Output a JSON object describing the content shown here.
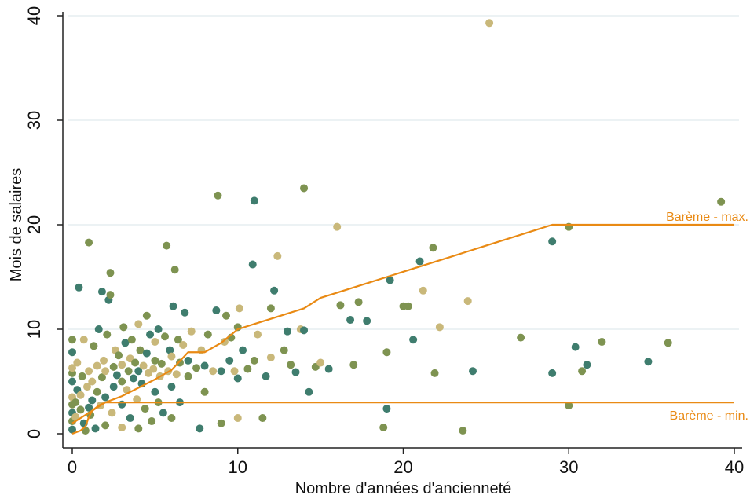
{
  "chart_data": {
    "type": "scatter",
    "title": "",
    "xlabel": "Nombre d'années d'ancienneté",
    "ylabel": "Mois de salaires",
    "xlim": [
      0,
      40
    ],
    "ylim": [
      0,
      40
    ],
    "xticks": [
      "0",
      "10",
      "20",
      "30",
      "40"
    ],
    "yticks": [
      "0",
      "10",
      "20",
      "30",
      "40"
    ],
    "grid": "horizontal",
    "point_colors": [
      "#3f7d6e",
      "#7e9351",
      "#c9b87a"
    ],
    "line_color": "#e98a14",
    "points": [
      [
        0,
        0.4,
        0
      ],
      [
        0,
        1.2,
        1
      ],
      [
        0,
        2,
        0
      ],
      [
        0,
        2.8,
        1
      ],
      [
        0,
        3.5,
        2
      ],
      [
        0,
        5,
        0
      ],
      [
        0,
        5.8,
        1
      ],
      [
        0,
        6.3,
        2
      ],
      [
        0,
        7.8,
        0
      ],
      [
        0,
        9,
        1
      ],
      [
        0.2,
        1.6,
        2
      ],
      [
        0.2,
        3,
        1
      ],
      [
        0.3,
        4.2,
        0
      ],
      [
        0.3,
        6.8,
        2
      ],
      [
        0.4,
        14,
        0
      ],
      [
        0.5,
        2.3,
        1
      ],
      [
        0.5,
        3.7,
        2
      ],
      [
        0.6,
        5.5,
        1
      ],
      [
        0.7,
        1,
        0
      ],
      [
        0.7,
        9,
        2
      ],
      [
        0.8,
        0.3,
        1
      ],
      [
        0.9,
        4.5,
        2
      ],
      [
        1,
        18.3,
        1
      ],
      [
        1,
        2.5,
        0
      ],
      [
        1,
        6,
        2
      ],
      [
        1.1,
        1.8,
        1
      ],
      [
        1.2,
        3.2,
        0
      ],
      [
        1.2,
        5,
        2
      ],
      [
        1.3,
        8.4,
        1
      ],
      [
        1.4,
        0.5,
        0
      ],
      [
        1.5,
        4,
        1
      ],
      [
        1.5,
        6.5,
        2
      ],
      [
        1.6,
        10,
        0
      ],
      [
        1.7,
        2.7,
        2
      ],
      [
        1.8,
        5.4,
        1
      ],
      [
        1.8,
        13.6,
        0
      ],
      [
        1.9,
        7,
        2
      ],
      [
        2,
        0.8,
        1
      ],
      [
        2,
        3.5,
        0
      ],
      [
        2,
        6,
        2
      ],
      [
        2.1,
        9.5,
        1
      ],
      [
        2.2,
        12.8,
        0
      ],
      [
        2.3,
        13.3,
        1
      ],
      [
        2.3,
        15.4,
        1
      ],
      [
        2.4,
        2,
        2
      ],
      [
        2.5,
        4.5,
        0
      ],
      [
        2.5,
        6.4,
        1
      ],
      [
        2.6,
        8,
        2
      ],
      [
        2.7,
        5.6,
        0
      ],
      [
        2.8,
        7.5,
        1
      ],
      [
        3,
        0.6,
        2
      ],
      [
        3,
        2.8,
        0
      ],
      [
        3,
        5,
        1
      ],
      [
        3,
        6.6,
        2
      ],
      [
        3.1,
        10.2,
        1
      ],
      [
        3.2,
        8.7,
        0
      ],
      [
        3.3,
        4.2,
        2
      ],
      [
        3.4,
        6,
        1
      ],
      [
        3.5,
        1.5,
        0
      ],
      [
        3.5,
        7.2,
        2
      ],
      [
        3.6,
        9,
        1
      ],
      [
        3.7,
        5.3,
        0
      ],
      [
        3.8,
        6.8,
        1
      ],
      [
        3.9,
        3.3,
        2
      ],
      [
        4,
        0.5,
        1
      ],
      [
        4,
        6,
        0
      ],
      [
        4,
        10.5,
        2
      ],
      [
        4.1,
        8,
        1
      ],
      [
        4.2,
        4.8,
        0
      ],
      [
        4.3,
        6.5,
        2
      ],
      [
        4.4,
        2.4,
        1
      ],
      [
        4.5,
        7.7,
        0
      ],
      [
        4.5,
        11.3,
        1
      ],
      [
        4.6,
        5.8,
        2
      ],
      [
        4.7,
        9.5,
        0
      ],
      [
        4.8,
        1.2,
        1
      ],
      [
        4.9,
        6.2,
        2
      ],
      [
        5,
        4,
        0
      ],
      [
        5,
        7,
        1
      ],
      [
        5,
        8.8,
        2
      ],
      [
        5.2,
        3,
        1
      ],
      [
        5.2,
        10,
        0
      ],
      [
        5.3,
        5.5,
        2
      ],
      [
        5.4,
        6.7,
        1
      ],
      [
        5.5,
        2,
        0
      ],
      [
        5.6,
        9.3,
        1
      ],
      [
        5.7,
        18,
        1
      ],
      [
        5.8,
        6,
        2
      ],
      [
        5.9,
        8,
        0
      ],
      [
        6,
        1.5,
        1
      ],
      [
        6,
        4.5,
        0
      ],
      [
        6,
        7.4,
        2
      ],
      [
        6.1,
        12.2,
        0
      ],
      [
        6.2,
        15.7,
        1
      ],
      [
        6.3,
        5.7,
        2
      ],
      [
        6.4,
        9,
        1
      ],
      [
        6.5,
        3,
        0
      ],
      [
        6.5,
        6.8,
        1
      ],
      [
        6.7,
        8.5,
        2
      ],
      [
        6.8,
        11.6,
        0
      ],
      [
        7,
        5.5,
        1
      ],
      [
        7,
        7,
        0
      ],
      [
        7.2,
        9.8,
        2
      ],
      [
        7.5,
        6.3,
        1
      ],
      [
        7.7,
        0.5,
        0
      ],
      [
        7.8,
        8,
        2
      ],
      [
        8,
        4,
        1
      ],
      [
        8,
        6.5,
        0
      ],
      [
        8.2,
        9.5,
        1
      ],
      [
        8.5,
        6,
        2
      ],
      [
        8.7,
        11.8,
        0
      ],
      [
        8.8,
        22.8,
        1
      ],
      [
        9,
        1,
        1
      ],
      [
        9,
        6,
        0
      ],
      [
        9.2,
        8.8,
        2
      ],
      [
        9.3,
        11.3,
        1
      ],
      [
        9.5,
        7,
        0
      ],
      [
        9.6,
        9.2,
        1
      ],
      [
        9.8,
        6,
        2
      ],
      [
        10,
        1.5,
        2
      ],
      [
        10,
        5.3,
        0
      ],
      [
        10,
        10.2,
        1
      ],
      [
        10.1,
        12,
        2
      ],
      [
        10.3,
        8,
        0
      ],
      [
        10.6,
        6.2,
        1
      ],
      [
        10.9,
        16.2,
        0
      ],
      [
        11,
        22.3,
        0
      ],
      [
        11,
        7,
        1
      ],
      [
        11.2,
        9.5,
        2
      ],
      [
        11.5,
        1.5,
        1
      ],
      [
        11.7,
        5.5,
        0
      ],
      [
        12,
        7.3,
        2
      ],
      [
        12,
        12,
        1
      ],
      [
        12.2,
        13.7,
        0
      ],
      [
        12.4,
        17,
        2
      ],
      [
        12.8,
        8,
        1
      ],
      [
        13,
        9.8,
        0
      ],
      [
        13.2,
        6.6,
        1
      ],
      [
        13.5,
        5.9,
        0
      ],
      [
        13.8,
        10,
        2
      ],
      [
        14,
        23.5,
        1
      ],
      [
        14,
        9.9,
        0
      ],
      [
        14.3,
        4,
        0
      ],
      [
        14.7,
        6.4,
        1
      ],
      [
        15,
        6.8,
        2
      ],
      [
        15.5,
        6.2,
        0
      ],
      [
        16,
        19.8,
        2
      ],
      [
        16.2,
        12.3,
        1
      ],
      [
        16.8,
        10.9,
        0
      ],
      [
        17,
        6.6,
        1
      ],
      [
        17.3,
        12.6,
        1
      ],
      [
        17.8,
        10.8,
        0
      ],
      [
        18.8,
        0.6,
        1
      ],
      [
        19,
        2.4,
        0
      ],
      [
        19,
        7.8,
        1
      ],
      [
        19.2,
        14.7,
        0
      ],
      [
        20,
        12.2,
        1
      ],
      [
        20.3,
        12.2,
        1
      ],
      [
        20.6,
        9,
        0
      ],
      [
        21,
        16.5,
        0
      ],
      [
        21.2,
        13.7,
        2
      ],
      [
        21.8,
        17.8,
        1
      ],
      [
        21.9,
        5.8,
        1
      ],
      [
        22.2,
        10.2,
        2
      ],
      [
        23.6,
        0.3,
        1
      ],
      [
        23.9,
        12.7,
        2
      ],
      [
        24.2,
        6,
        0
      ],
      [
        25.2,
        39.3,
        2
      ],
      [
        27.1,
        9.2,
        1
      ],
      [
        29,
        5.8,
        0
      ],
      [
        29,
        18.4,
        0
      ],
      [
        30,
        2.7,
        1
      ],
      [
        30,
        19.8,
        1
      ],
      [
        30.4,
        8.3,
        0
      ],
      [
        30.8,
        6,
        1
      ],
      [
        31.1,
        6.6,
        0
      ],
      [
        32,
        8.8,
        1
      ],
      [
        34.8,
        6.9,
        0
      ],
      [
        36,
        8.7,
        1
      ],
      [
        39.2,
        22.2,
        1
      ]
    ],
    "series": [
      {
        "name": "Barème - max.",
        "x": [
          0,
          1,
          2,
          3,
          4,
          5,
          6,
          7,
          8,
          9,
          10,
          11,
          12,
          13,
          14,
          15,
          16,
          17,
          18,
          19,
          20,
          21,
          22,
          23,
          24,
          25,
          26,
          27,
          28,
          29,
          40
        ],
        "y": [
          1,
          2,
          3,
          3.6,
          4.4,
          5.2,
          6.1,
          7.8,
          7.8,
          8.7,
          10,
          10.5,
          11,
          11.5,
          12,
          13,
          13.5,
          14,
          14.5,
          15,
          15.5,
          16,
          16.5,
          17,
          17.5,
          18,
          18.5,
          19,
          19.5,
          20,
          20
        ]
      },
      {
        "name": "Barème - min.",
        "x": [
          0,
          0.5,
          0.8,
          1,
          1.2,
          1.6,
          2,
          40
        ],
        "y": [
          0,
          0.3,
          0.7,
          1.6,
          2.2,
          2.7,
          3,
          3
        ]
      }
    ]
  }
}
